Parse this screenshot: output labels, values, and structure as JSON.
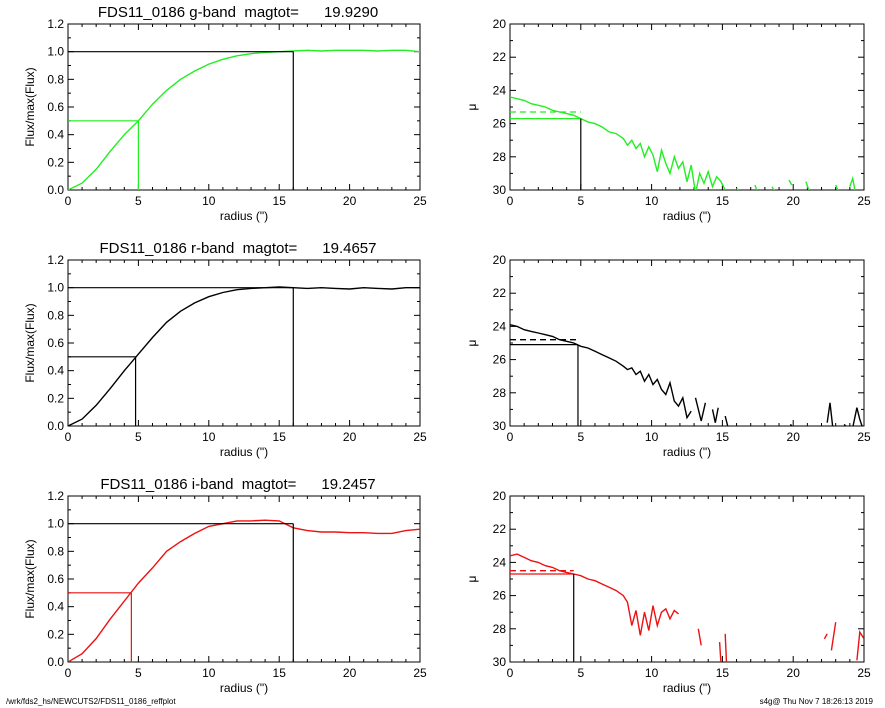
{
  "footer": {
    "path": "/wrk/fds2_hs/NEWCUTS2/FDS11_0186_reffplot",
    "stamp": "s4g@  Thu Nov  7 18:26:13 2019"
  },
  "colors": {
    "g": "#22ee22",
    "r": "#000000",
    "i": "#ee1111",
    "axis": "#000000"
  },
  "chart_data": [
    {
      "type": "line",
      "title": "FDS11_0186 g-band  magtot=      19.9290",
      "xlabel": "radius (\")",
      "ylabel": "Flux/max(Flux)",
      "xlim": [
        0,
        25
      ],
      "ylim": [
        0,
        1.2
      ],
      "xticks": [
        0,
        5,
        10,
        15,
        20,
        25
      ],
      "yticks": [
        0.0,
        0.2,
        0.4,
        0.6,
        0.8,
        1.0,
        1.2
      ],
      "ytick_labels": [
        "0.0",
        "0.2",
        "0.4",
        "0.6",
        "0.8",
        "1.0",
        "1.2"
      ],
      "color_key": "g",
      "x": [
        0,
        1,
        2,
        3,
        4,
        5,
        6,
        7,
        8,
        9,
        10,
        11,
        12,
        13,
        14,
        15,
        16,
        17,
        18,
        19,
        20,
        21,
        22,
        23,
        24,
        25
      ],
      "y": [
        0.0,
        0.05,
        0.15,
        0.28,
        0.4,
        0.5,
        0.62,
        0.72,
        0.8,
        0.86,
        0.91,
        0.945,
        0.97,
        0.985,
        0.995,
        1.0,
        1.005,
        1.01,
        1.005,
        1.01,
        1.01,
        1.01,
        1.005,
        1.01,
        1.01,
        1.0
      ],
      "half_light": {
        "r": 5.0,
        "frac": 0.5
      },
      "total": {
        "r": 16.0,
        "frac": 1.0
      }
    },
    {
      "type": "line",
      "xlabel": "radius (\")",
      "ylabel": "μ",
      "xlim": [
        0,
        25
      ],
      "ylim": [
        30,
        20
      ],
      "xticks": [
        0,
        5,
        10,
        15,
        20,
        25
      ],
      "yticks": [
        20,
        22,
        24,
        26,
        28,
        30
      ],
      "color_key": "g",
      "segments": [
        {
          "x": [
            0,
            0.5,
            1,
            1.5,
            2,
            2.5,
            3,
            3.5,
            4,
            4.5,
            5,
            5.5,
            6,
            6.5,
            7,
            7.5,
            8,
            8.3,
            8.6,
            8.9,
            9.2,
            9.5,
            9.8,
            10.1,
            10.4,
            10.7,
            11.0,
            11.3,
            11.6,
            11.9,
            12.2,
            12.5,
            12.8,
            13.1,
            13.4,
            13.7,
            14.0,
            14.3,
            14.6,
            14.9,
            15.2
          ],
          "y": [
            24.4,
            24.5,
            24.6,
            24.8,
            24.9,
            25.0,
            25.2,
            25.3,
            25.4,
            25.5,
            25.7,
            25.9,
            26.0,
            26.2,
            26.5,
            26.6,
            26.9,
            27.3,
            27.0,
            27.5,
            27.2,
            28.0,
            27.4,
            27.9,
            28.9,
            27.6,
            28.4,
            29.0,
            28.0,
            28.7,
            28.3,
            29.5,
            28.5,
            30.2,
            29.0,
            29.6,
            28.9,
            29.8,
            29.2,
            29.5,
            30.0
          ]
        },
        {
          "x": [
            16.0,
            16.2
          ],
          "y": [
            29.9,
            30.2
          ]
        },
        {
          "x": [
            17.3,
            17.5
          ],
          "y": [
            29.7,
            30.2
          ]
        },
        {
          "x": [
            18.5,
            18.7
          ],
          "y": [
            29.8,
            30.1
          ]
        },
        {
          "x": [
            19.7,
            19.9
          ],
          "y": [
            29.4,
            29.7
          ]
        },
        {
          "x": [
            20.9,
            21.1
          ],
          "y": [
            29.5,
            30.0
          ]
        },
        {
          "x": [
            23.0,
            23.2
          ],
          "y": [
            29.7,
            30.1
          ]
        },
        {
          "x": [
            24.0,
            24.2,
            24.4
          ],
          "y": [
            29.8,
            29.3,
            30.2
          ]
        }
      ],
      "mu_e": {
        "r": 5.0,
        "mu": 25.7
      },
      "mu_mean": {
        "mu": 25.3
      }
    },
    {
      "type": "line",
      "title": "FDS11_0186 r-band  magtot=      19.4657",
      "xlabel": "radius (\")",
      "ylabel": "Flux/max(Flux)",
      "xlim": [
        0,
        25
      ],
      "ylim": [
        0,
        1.2
      ],
      "xticks": [
        0,
        5,
        10,
        15,
        20,
        25
      ],
      "yticks": [
        0.0,
        0.2,
        0.4,
        0.6,
        0.8,
        1.0,
        1.2
      ],
      "ytick_labels": [
        "0.0",
        "0.2",
        "0.4",
        "0.6",
        "0.8",
        "1.0",
        "1.2"
      ],
      "color_key": "r",
      "x": [
        0,
        1,
        2,
        3,
        4,
        5,
        6,
        7,
        8,
        9,
        10,
        11,
        12,
        13,
        14,
        15,
        16,
        17,
        18,
        19,
        20,
        21,
        22,
        23,
        24,
        25
      ],
      "y": [
        0.0,
        0.05,
        0.15,
        0.27,
        0.4,
        0.52,
        0.64,
        0.75,
        0.83,
        0.89,
        0.935,
        0.965,
        0.985,
        0.995,
        1.0,
        1.005,
        1.0,
        0.995,
        1.0,
        0.995,
        0.99,
        1.0,
        0.995,
        0.99,
        1.0,
        1.0
      ],
      "half_light": {
        "r": 4.8,
        "frac": 0.5
      },
      "total": {
        "r": 16.0,
        "frac": 1.0
      }
    },
    {
      "type": "line",
      "xlabel": "radius (\")",
      "ylabel": "μ",
      "xlim": [
        0,
        25
      ],
      "ylim": [
        30,
        20
      ],
      "xticks": [
        0,
        5,
        10,
        15,
        20,
        25
      ],
      "yticks": [
        20,
        22,
        24,
        26,
        28,
        30
      ],
      "color_key": "r",
      "segments": [
        {
          "x": [
            0,
            0.5,
            1,
            1.5,
            2,
            2.5,
            3,
            3.5,
            4,
            4.5,
            5,
            5.5,
            6,
            6.5,
            7,
            7.5,
            8,
            8.3,
            8.6,
            8.9,
            9.2,
            9.5,
            9.8,
            10.1,
            10.4,
            10.7,
            11.0,
            11.3,
            11.6,
            11.9,
            12.2,
            12.5,
            12.8
          ],
          "y": [
            23.9,
            24.0,
            24.2,
            24.3,
            24.4,
            24.5,
            24.6,
            24.8,
            24.9,
            25.0,
            25.2,
            25.3,
            25.5,
            25.7,
            25.9,
            26.1,
            26.4,
            26.6,
            26.5,
            26.9,
            26.7,
            27.3,
            26.9,
            27.5,
            27.2,
            27.8,
            28.1,
            27.4,
            28.5,
            28.8,
            28.3,
            29.5,
            29.1
          ]
        },
        {
          "x": [
            13.1,
            13.5,
            13.8
          ],
          "y": [
            28.3,
            29.7,
            28.6
          ]
        },
        {
          "x": [
            14.3,
            14.5,
            14.7
          ],
          "y": [
            29.0,
            29.8,
            28.9
          ]
        },
        {
          "x": [
            15.2,
            15.4
          ],
          "y": [
            29.4,
            30.1
          ]
        },
        {
          "x": [
            19.8,
            20.0
          ],
          "y": [
            29.9,
            30.1
          ]
        },
        {
          "x": [
            22.4,
            22.6,
            22.8
          ],
          "y": [
            29.8,
            28.6,
            30.1
          ]
        },
        {
          "x": [
            23.6,
            23.8
          ],
          "y": [
            29.9,
            30.1
          ]
        },
        {
          "x": [
            24.2,
            24.5,
            24.7,
            24.9
          ],
          "y": [
            30.1,
            28.9,
            29.6,
            30.1
          ]
        }
      ],
      "mu_e": {
        "r": 4.8,
        "mu": 25.1
      },
      "mu_mean": {
        "mu": 24.8
      }
    },
    {
      "type": "line",
      "title": "FDS11_0186 i-band  magtot=      19.2457",
      "xlabel": "radius (\")",
      "ylabel": "Flux/max(Flux)",
      "xlim": [
        0,
        25
      ],
      "ylim": [
        0,
        1.2
      ],
      "xticks": [
        0,
        5,
        10,
        15,
        20,
        25
      ],
      "yticks": [
        0.0,
        0.2,
        0.4,
        0.6,
        0.8,
        1.0,
        1.2
      ],
      "ytick_labels": [
        "0.0",
        "0.2",
        "0.4",
        "0.6",
        "0.8",
        "1.0",
        "1.2"
      ],
      "color_key": "i",
      "x": [
        0,
        1,
        2,
        3,
        4,
        5,
        6,
        7,
        8,
        9,
        10,
        11,
        12,
        13,
        14,
        15,
        16,
        17,
        18,
        19,
        20,
        21,
        22,
        23,
        24,
        25
      ],
      "y": [
        0.0,
        0.06,
        0.17,
        0.31,
        0.44,
        0.57,
        0.68,
        0.8,
        0.87,
        0.93,
        0.98,
        1.0,
        1.02,
        1.02,
        1.025,
        1.02,
        0.97,
        0.95,
        0.94,
        0.94,
        0.935,
        0.935,
        0.93,
        0.93,
        0.95,
        0.96
      ],
      "half_light": {
        "r": 4.5,
        "frac": 0.5
      },
      "total": {
        "r": 16.0,
        "frac": 1.0
      }
    },
    {
      "type": "line",
      "xlabel": "radius (\")",
      "ylabel": "μ",
      "xlim": [
        0,
        25
      ],
      "ylim": [
        30,
        20
      ],
      "xticks": [
        0,
        5,
        10,
        15,
        20,
        25
      ],
      "yticks": [
        20,
        22,
        24,
        26,
        28,
        30
      ],
      "color_key": "i",
      "segments": [
        {
          "x": [
            0,
            0.5,
            1,
            1.5,
            2,
            2.5,
            3,
            3.5,
            4,
            4.5,
            5,
            5.5,
            6,
            6.5,
            7,
            7.5,
            8,
            8.3,
            8.6,
            8.9,
            9.2,
            9.5,
            9.8,
            10.1,
            10.4,
            10.7,
            11.0,
            11.3,
            11.6,
            11.9
          ],
          "y": [
            23.6,
            23.5,
            23.7,
            23.9,
            24.0,
            24.2,
            24.3,
            24.5,
            24.6,
            24.7,
            24.8,
            25.0,
            25.1,
            25.3,
            25.5,
            25.7,
            26.0,
            26.4,
            27.8,
            26.9,
            28.4,
            27.0,
            28.1,
            26.6,
            27.8,
            27.0,
            26.8,
            27.4,
            26.9,
            27.1
          ]
        },
        {
          "x": [
            13.3,
            13.5
          ],
          "y": [
            28.0,
            29.0
          ]
        },
        {
          "x": [
            14.8,
            14.9
          ],
          "y": [
            28.8,
            30.1
          ]
        },
        {
          "x": [
            15.2,
            15.3
          ],
          "y": [
            28.3,
            30.2
          ]
        },
        {
          "x": [
            22.2,
            22.4
          ],
          "y": [
            28.6,
            28.3
          ]
        },
        {
          "x": [
            22.7,
            23.0
          ],
          "y": [
            29.3,
            27.6
          ]
        },
        {
          "x": [
            24.5,
            24.7,
            25.0
          ],
          "y": [
            29.9,
            28.2,
            28.6
          ]
        }
      ],
      "mu_e": {
        "r": 4.5,
        "mu": 24.7
      },
      "mu_mean": {
        "mu": 24.5
      }
    }
  ]
}
